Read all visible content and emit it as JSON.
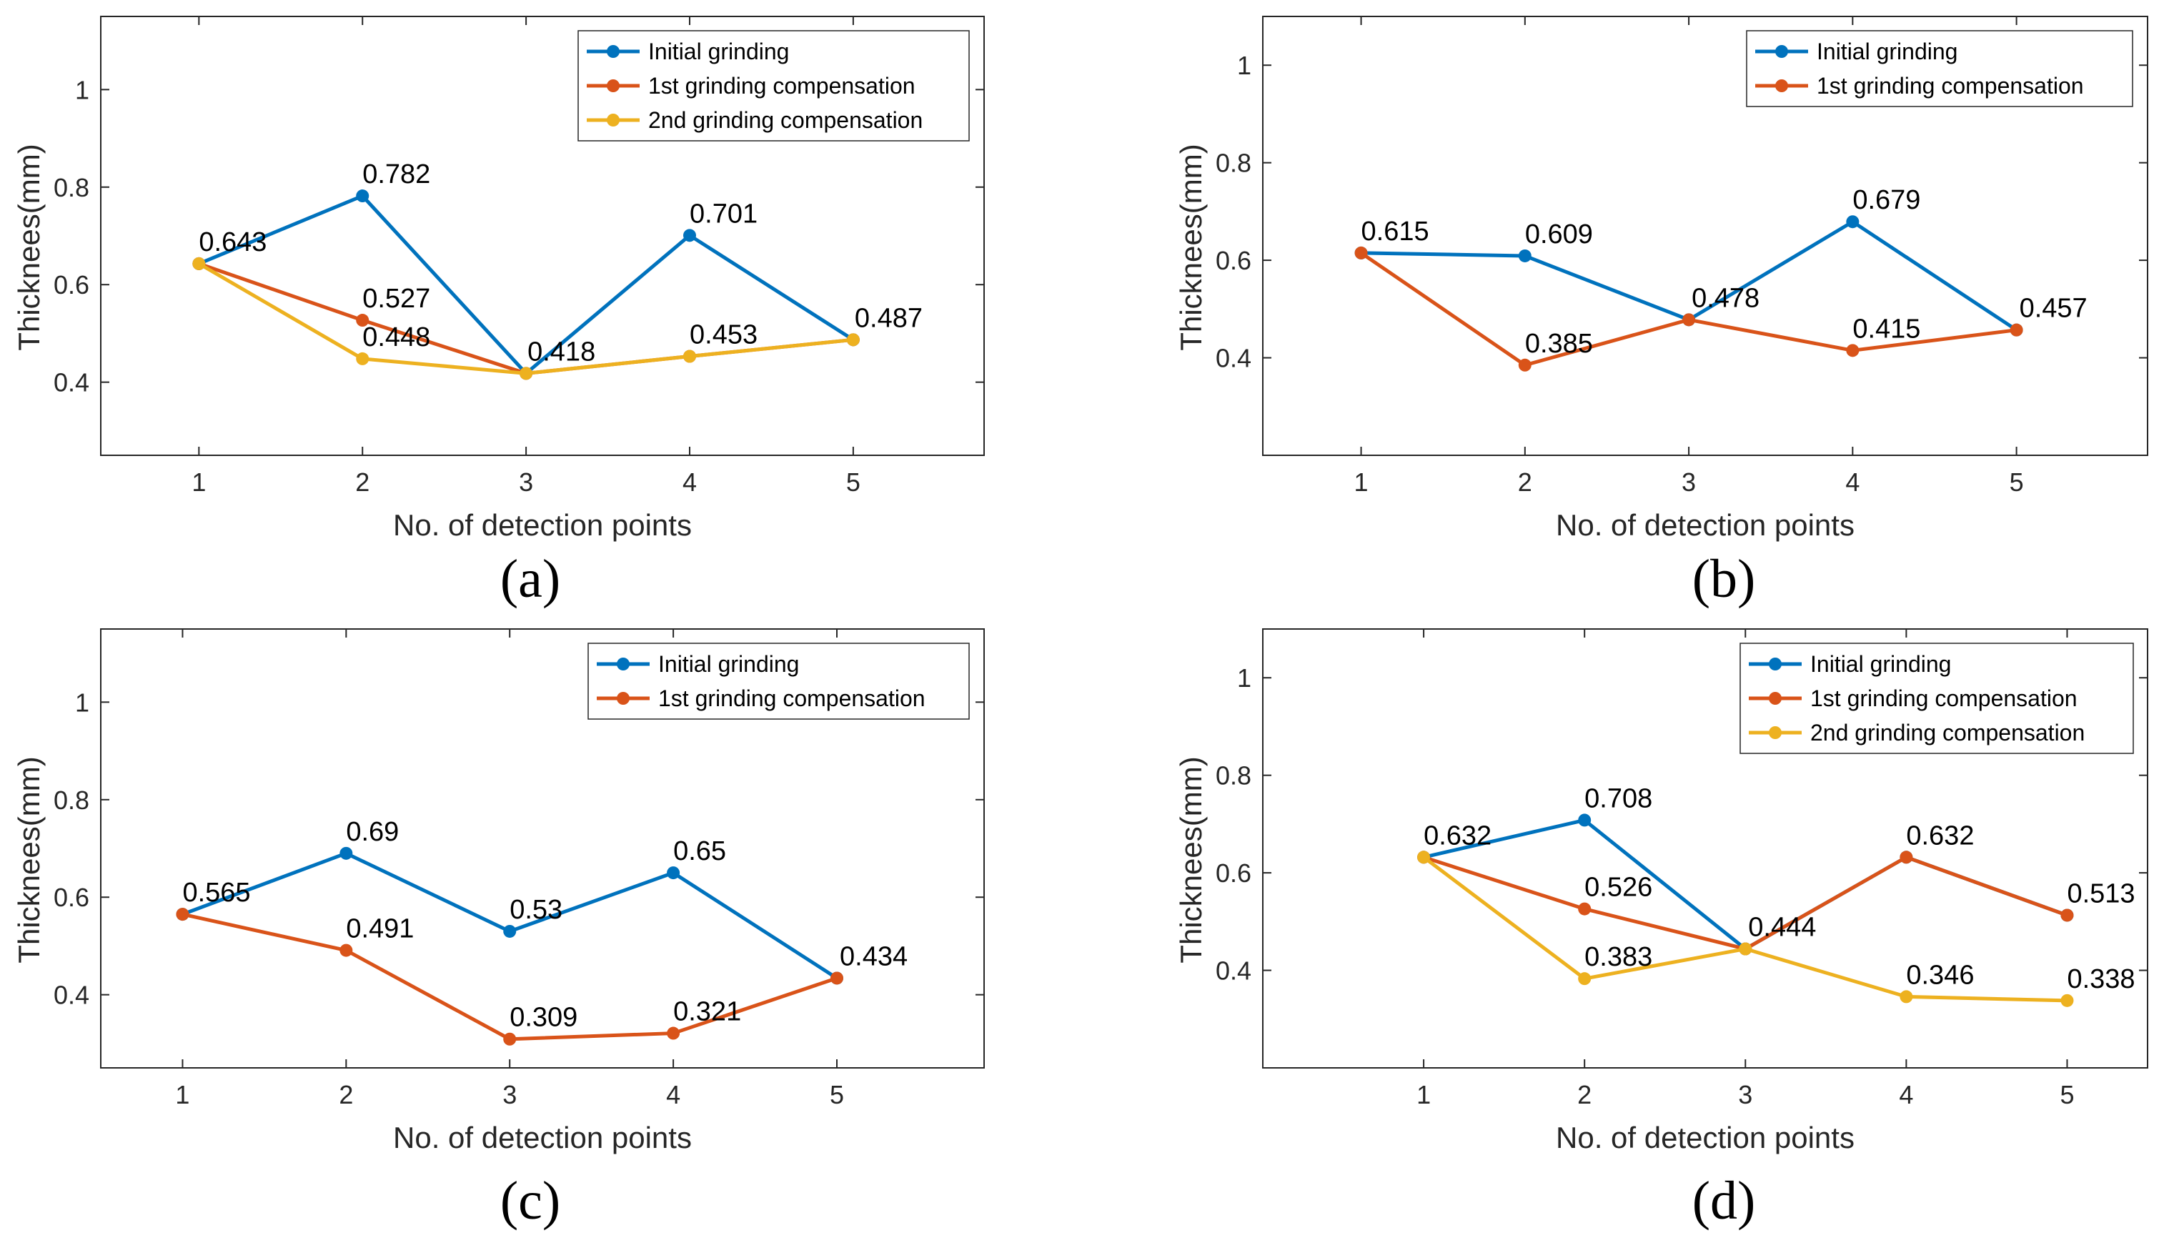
{
  "colors": {
    "initial": "#0072BD",
    "first": "#D95319",
    "second": "#EDB120"
  },
  "chart_data": [
    {
      "type": "line",
      "panel_label": "(a)",
      "xlabel": "No. of detection points",
      "ylabel": "Thicknees(mm)",
      "xlim": [
        0.4,
        5.8
      ],
      "ylim": [
        0.25,
        1.15
      ],
      "xticks": [
        1,
        2,
        3,
        4,
        5
      ],
      "yticks": [
        0.4,
        0.6,
        0.8,
        1
      ],
      "ytick_labels": [
        "0.4",
        "0.6",
        "0.8",
        "1"
      ],
      "legend": "top-right",
      "x": [
        1,
        2,
        3,
        4,
        5
      ],
      "series": [
        {
          "name": "Initial grinding",
          "color": "initial",
          "values": [
            0.643,
            0.782,
            0.418,
            0.701,
            0.487
          ],
          "labels": [
            "0.643",
            "0.782",
            "0.418",
            "0.701",
            "0.487"
          ],
          "show_label": [
            true,
            true,
            true,
            true,
            true
          ]
        },
        {
          "name": "1st grinding compensation",
          "color": "first",
          "values": [
            0.643,
            0.527,
            0.418,
            0.453,
            0.487
          ],
          "labels": [
            "0.643",
            "0.527",
            "0.418",
            "0.453",
            "0.487"
          ],
          "show_label": [
            false,
            true,
            false,
            false,
            false
          ]
        },
        {
          "name": "2nd grinding compensation",
          "color": "second",
          "values": [
            0.643,
            0.448,
            0.418,
            0.453,
            0.487
          ],
          "labels": [
            "0.643",
            "0.448",
            "0.418",
            "0.453",
            "0.487"
          ],
          "show_label": [
            false,
            true,
            false,
            true,
            false
          ]
        }
      ]
    },
    {
      "type": "line",
      "panel_label": "(b)",
      "xlabel": "No. of detection points",
      "ylabel": "Thicknees(mm)",
      "xlim": [
        0.4,
        5.8
      ],
      "ylim": [
        0.2,
        1.1
      ],
      "xticks": [
        1,
        2,
        3,
        4,
        5
      ],
      "yticks": [
        0.4,
        0.6,
        0.8,
        1
      ],
      "ytick_labels": [
        "0.4",
        "0.6",
        "0.8",
        "1"
      ],
      "legend": "top-right",
      "x": [
        1,
        2,
        3,
        4,
        5
      ],
      "series": [
        {
          "name": "Initial grinding",
          "color": "initial",
          "values": [
            0.615,
            0.609,
            0.478,
            0.679,
            0.457
          ],
          "labels": [
            "0.615",
            "0.609",
            "0.478",
            "0.679",
            "0.457"
          ],
          "show_label": [
            true,
            true,
            true,
            true,
            true
          ]
        },
        {
          "name": "1st grinding compensation",
          "color": "first",
          "values": [
            0.615,
            0.385,
            0.478,
            0.415,
            0.457
          ],
          "labels": [
            "0.615",
            "0.385",
            "0.478",
            "0.415",
            "0.457"
          ],
          "show_label": [
            false,
            true,
            false,
            true,
            false
          ]
        }
      ]
    },
    {
      "type": "line",
      "panel_label": "(c)",
      "xlabel": "No. of detection points",
      "ylabel": "Thicknees(mm)",
      "xlim": [
        0.5,
        5.9
      ],
      "ylim": [
        0.25,
        1.15
      ],
      "xticks": [
        1,
        2,
        3,
        4,
        5
      ],
      "yticks": [
        0.4,
        0.6,
        0.8,
        1
      ],
      "ytick_labels": [
        "0.4",
        "0.6",
        "0.8",
        "1"
      ],
      "legend": "top-right",
      "x": [
        1,
        2,
        3,
        4,
        5
      ],
      "series": [
        {
          "name": "Initial grinding",
          "color": "initial",
          "values": [
            0.565,
            0.69,
            0.53,
            0.65,
            0.434
          ],
          "labels": [
            "0.565",
            "0.69",
            "0.53",
            "0.65",
            "0.434"
          ],
          "show_label": [
            true,
            true,
            true,
            true,
            true
          ]
        },
        {
          "name": "1st grinding compensation",
          "color": "first",
          "values": [
            0.565,
            0.491,
            0.309,
            0.321,
            0.434
          ],
          "labels": [
            "0.565",
            "0.491",
            "0.309",
            "0.321",
            "0.434"
          ],
          "show_label": [
            false,
            true,
            true,
            true,
            false
          ]
        }
      ]
    },
    {
      "type": "line",
      "panel_label": "(d)",
      "xlabel": "No. of detection points",
      "ylabel": "Thicknees(mm)",
      "xlim": [
        0.0,
        5.5
      ],
      "ylim": [
        0.2,
        1.1
      ],
      "xticks": [
        1,
        2,
        3,
        4,
        5
      ],
      "yticks": [
        0.4,
        0.6,
        0.8,
        1
      ],
      "ytick_labels": [
        "0.4",
        "0.6",
        "0.8",
        "1"
      ],
      "legend": "top-right",
      "x": [
        1,
        2,
        3,
        4,
        5
      ],
      "series": [
        {
          "name": "Initial grinding",
          "color": "initial",
          "values": [
            0.632,
            0.708,
            0.444,
            0.632,
            0.513
          ],
          "labels": [
            "0.632",
            "0.708",
            "0.444",
            "0.632",
            "0.513"
          ],
          "show_label": [
            true,
            true,
            true,
            true,
            true
          ]
        },
        {
          "name": "1st grinding compensation",
          "color": "first",
          "values": [
            0.632,
            0.526,
            0.444,
            0.632,
            0.513
          ],
          "labels": [
            "0.632",
            "0.526",
            "0.444",
            "0.632",
            "0.513"
          ],
          "show_label": [
            false,
            true,
            false,
            false,
            false
          ]
        },
        {
          "name": "2nd grinding compensation",
          "color": "second",
          "values": [
            0.632,
            0.383,
            0.444,
            0.346,
            0.338
          ],
          "labels": [
            "0.632",
            "0.383",
            "0.444",
            "0.346",
            "0.338"
          ],
          "show_label": [
            false,
            true,
            false,
            true,
            true
          ]
        }
      ]
    }
  ]
}
